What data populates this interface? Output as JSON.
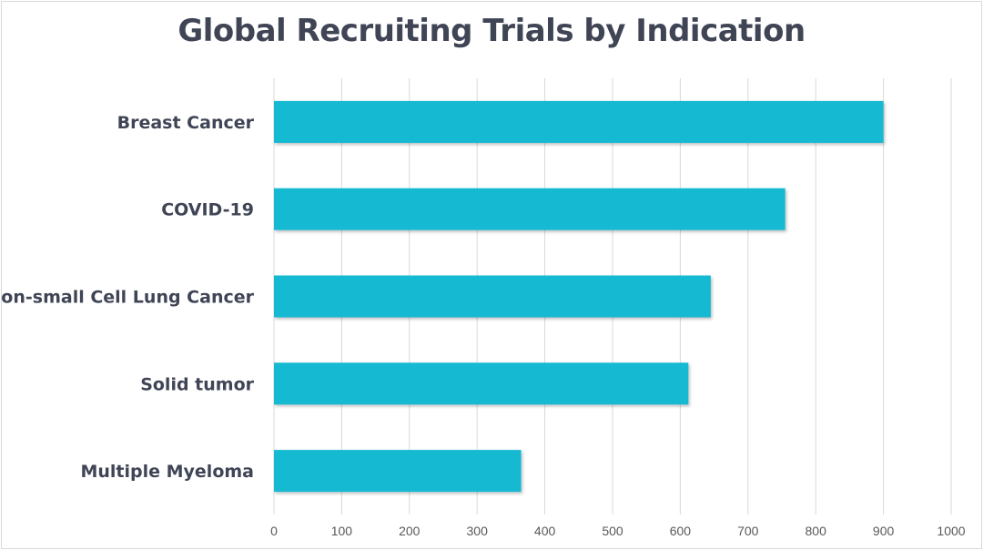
{
  "chart_data": {
    "type": "bar",
    "orientation": "horizontal",
    "title": "Global Recruiting Trials by Indication",
    "xlabel": "",
    "ylabel": "",
    "categories": [
      "Breast Cancer",
      "COVID-19",
      "Non-small Cell Lung Cancer",
      "Solid tumor",
      "Multiple Myeloma"
    ],
    "values": [
      900,
      755,
      645,
      612,
      365
    ],
    "xlim": [
      0,
      1000
    ],
    "xticks": [
      "0",
      "100",
      "200",
      "300",
      "400",
      "500",
      "600",
      "700",
      "800",
      "900",
      "1000"
    ],
    "grid": true,
    "legend": "none",
    "bar_color": "#12b9d2",
    "gridline_color": "#d9d9d9",
    "text_color": "#404556"
  }
}
